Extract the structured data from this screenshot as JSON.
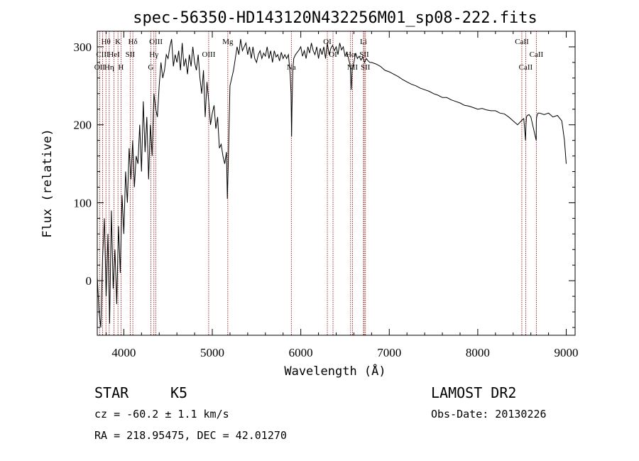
{
  "chart_data": {
    "type": "line",
    "title": "spec-56350-HD143120N432256M01_sp08-222.fits",
    "xlabel": "Wavelength (Å)",
    "ylabel": "Flux (relative)",
    "xlim": [
      3700,
      9100
    ],
    "ylim": [
      -70,
      320
    ],
    "x_ticks": [
      "4000",
      "5000",
      "6000",
      "7000",
      "8000",
      "9000"
    ],
    "y_ticks": [
      "0",
      "100",
      "200",
      "300"
    ],
    "grid": false,
    "series": [
      {
        "x": [
          3700,
          3720,
          3740,
          3760,
          3780,
          3800,
          3820,
          3840,
          3860,
          3880,
          3900,
          3920,
          3940,
          3960,
          3980,
          4000,
          4020,
          4040,
          4060,
          4080,
          4100,
          4120,
          4140,
          4160,
          4180,
          4200,
          4220,
          4240,
          4260,
          4280,
          4300,
          4320,
          4340,
          4360,
          4380,
          4400,
          4420,
          4440,
          4460,
          4480,
          4500,
          4520,
          4540,
          4560,
          4580,
          4600,
          4620,
          4640,
          4660,
          4680,
          4700,
          4720,
          4740,
          4760,
          4780,
          4800,
          4820,
          4840,
          4860,
          4880,
          4900,
          4920,
          4940,
          4960,
          4980,
          5000,
          5020,
          5040,
          5060,
          5080,
          5100,
          5120,
          5140,
          5160,
          5170,
          5180,
          5190,
          5200,
          5220,
          5240,
          5260,
          5280,
          5300,
          5320,
          5340,
          5360,
          5380,
          5400,
          5420,
          5440,
          5460,
          5480,
          5500,
          5520,
          5540,
          5560,
          5580,
          5600,
          5620,
          5640,
          5660,
          5680,
          5700,
          5720,
          5740,
          5760,
          5780,
          5800,
          5820,
          5840,
          5860,
          5880,
          5890,
          5896,
          5900,
          5910,
          5920,
          5940,
          5960,
          5980,
          6000,
          6020,
          6040,
          6060,
          6080,
          6100,
          6120,
          6140,
          6160,
          6180,
          6200,
          6220,
          6240,
          6260,
          6280,
          6300,
          6320,
          6340,
          6360,
          6380,
          6400,
          6420,
          6440,
          6460,
          6480,
          6500,
          6520,
          6540,
          6560,
          6564,
          6570,
          6580,
          6600,
          6620,
          6640,
          6660,
          6680,
          6700,
          6720,
          6740,
          6760,
          6780,
          6800,
          6850,
          6900,
          6950,
          7000,
          7050,
          7100,
          7150,
          7200,
          7250,
          7300,
          7350,
          7400,
          7450,
          7500,
          7550,
          7600,
          7650,
          7700,
          7750,
          7800,
          7850,
          7900,
          7950,
          8000,
          8050,
          8100,
          8150,
          8200,
          8250,
          8300,
          8350,
          8400,
          8450,
          8500,
          8520,
          8540,
          8545,
          8550,
          8560,
          8580,
          8600,
          8640,
          8660,
          8662,
          8665,
          8680,
          8700,
          8750,
          8800,
          8850,
          8900,
          8950,
          8980,
          9000
        ],
        "y": [
          5,
          -40,
          -60,
          30,
          80,
          -20,
          60,
          -55,
          90,
          -10,
          40,
          -30,
          70,
          10,
          110,
          60,
          140,
          100,
          170,
          130,
          180,
          120,
          160,
          150,
          200,
          140,
          230,
          165,
          210,
          130,
          200,
          160,
          240,
          220,
          210,
          250,
          280,
          260,
          270,
          290,
          285,
          300,
          310,
          275,
          290,
          280,
          295,
          270,
          305,
          275,
          285,
          265,
          290,
          275,
          300,
          280,
          270,
          290,
          260,
          240,
          270,
          210,
          255,
          230,
          200,
          215,
          225,
          195,
          210,
          170,
          175,
          160,
          150,
          165,
          105,
          150,
          200,
          250,
          260,
          270,
          285,
          300,
          290,
          310,
          295,
          300,
          305,
          290,
          300,
          285,
          300,
          285,
          280,
          290,
          295,
          285,
          292,
          288,
          300,
          285,
          295,
          280,
          295,
          287,
          290,
          282,
          293,
          285,
          290,
          285,
          290,
          265,
          240,
          185,
          220,
          270,
          285,
          290,
          293,
          296,
          300,
          288,
          295,
          285,
          300,
          292,
          305,
          295,
          290,
          300,
          285,
          298,
          290,
          300,
          285,
          305,
          290,
          298,
          302,
          295,
          300,
          290,
          305,
          296,
          300,
          288,
          293,
          285,
          275,
          260,
          245,
          270,
          280,
          292,
          285,
          288,
          283,
          287,
          280,
          285,
          282,
          280,
          280,
          278,
          275,
          270,
          268,
          265,
          262,
          258,
          255,
          252,
          250,
          247,
          245,
          243,
          240,
          238,
          235,
          235,
          232,
          230,
          228,
          225,
          224,
          222,
          220,
          221,
          219,
          218,
          218,
          215,
          214,
          210,
          205,
          200,
          206,
          208,
          180,
          200,
          210,
          212,
          213,
          210,
          190,
          180,
          205,
          210,
          215,
          215,
          213,
          215,
          210,
          212,
          205,
          180,
          150
        ]
      }
    ]
  },
  "spectral_lines": [
    {
      "name": "Hθ",
      "wl": 3798,
      "row": 1
    },
    {
      "name": "OII",
      "wl": 3727,
      "row": 3
    },
    {
      "name": "CIII",
      "wl": 3760,
      "row": 2
    },
    {
      "name": "HeI",
      "wl": 3889,
      "row": 2
    },
    {
      "name": "Hη",
      "wl": 3835,
      "row": 3
    },
    {
      "name": "K",
      "wl": 3934,
      "row": 1
    },
    {
      "name": "H",
      "wl": 3968,
      "row": 3
    },
    {
      "name": "SII",
      "wl": 4072,
      "row": 2
    },
    {
      "name": "Hδ",
      "wl": 4102,
      "row": 1
    },
    {
      "name": "OIII",
      "wl": 4363,
      "row": 1
    },
    {
      "name": "Hγ",
      "wl": 4340,
      "row": 2
    },
    {
      "name": "G",
      "wl": 4305,
      "row": 3
    },
    {
      "name": "OIII",
      "wl": 4959,
      "row": 2
    },
    {
      "name": "Mg",
      "wl": 5175,
      "row": 1
    },
    {
      "name": "Na",
      "wl": 5893,
      "row": 3
    },
    {
      "name": "OI",
      "wl": 6300,
      "row": 1
    },
    {
      "name": "OI",
      "wl": 6364,
      "row": 2
    },
    {
      "name": "Hα",
      "wl": 6563,
      "row": 2
    },
    {
      "name": "NII",
      "wl": 6584,
      "row": 3
    },
    {
      "name": "Li",
      "wl": 6708,
      "row": 1
    },
    {
      "name": "SII",
      "wl": 6717,
      "row": 2
    },
    {
      "name": "SII",
      "wl": 6731,
      "row": 3
    },
    {
      "name": "CaII",
      "wl": 8498,
      "row": 1
    },
    {
      "name": "CaII",
      "wl": 8542,
      "row": 3
    },
    {
      "name": "CaII",
      "wl": 8662,
      "row": 2
    }
  ],
  "info": {
    "class_label": "STAR",
    "subclass": "K5",
    "survey": "LAMOST DR2",
    "cz": "cz = -60.2 ± 1.1 km/s",
    "obs_date": "Obs-Date: 20130226",
    "coords": "RA = 218.95475, DEC =  42.01270"
  },
  "colors": {
    "spectrum": "#000000",
    "lines": "#8b0000",
    "axes": "#000000"
  }
}
